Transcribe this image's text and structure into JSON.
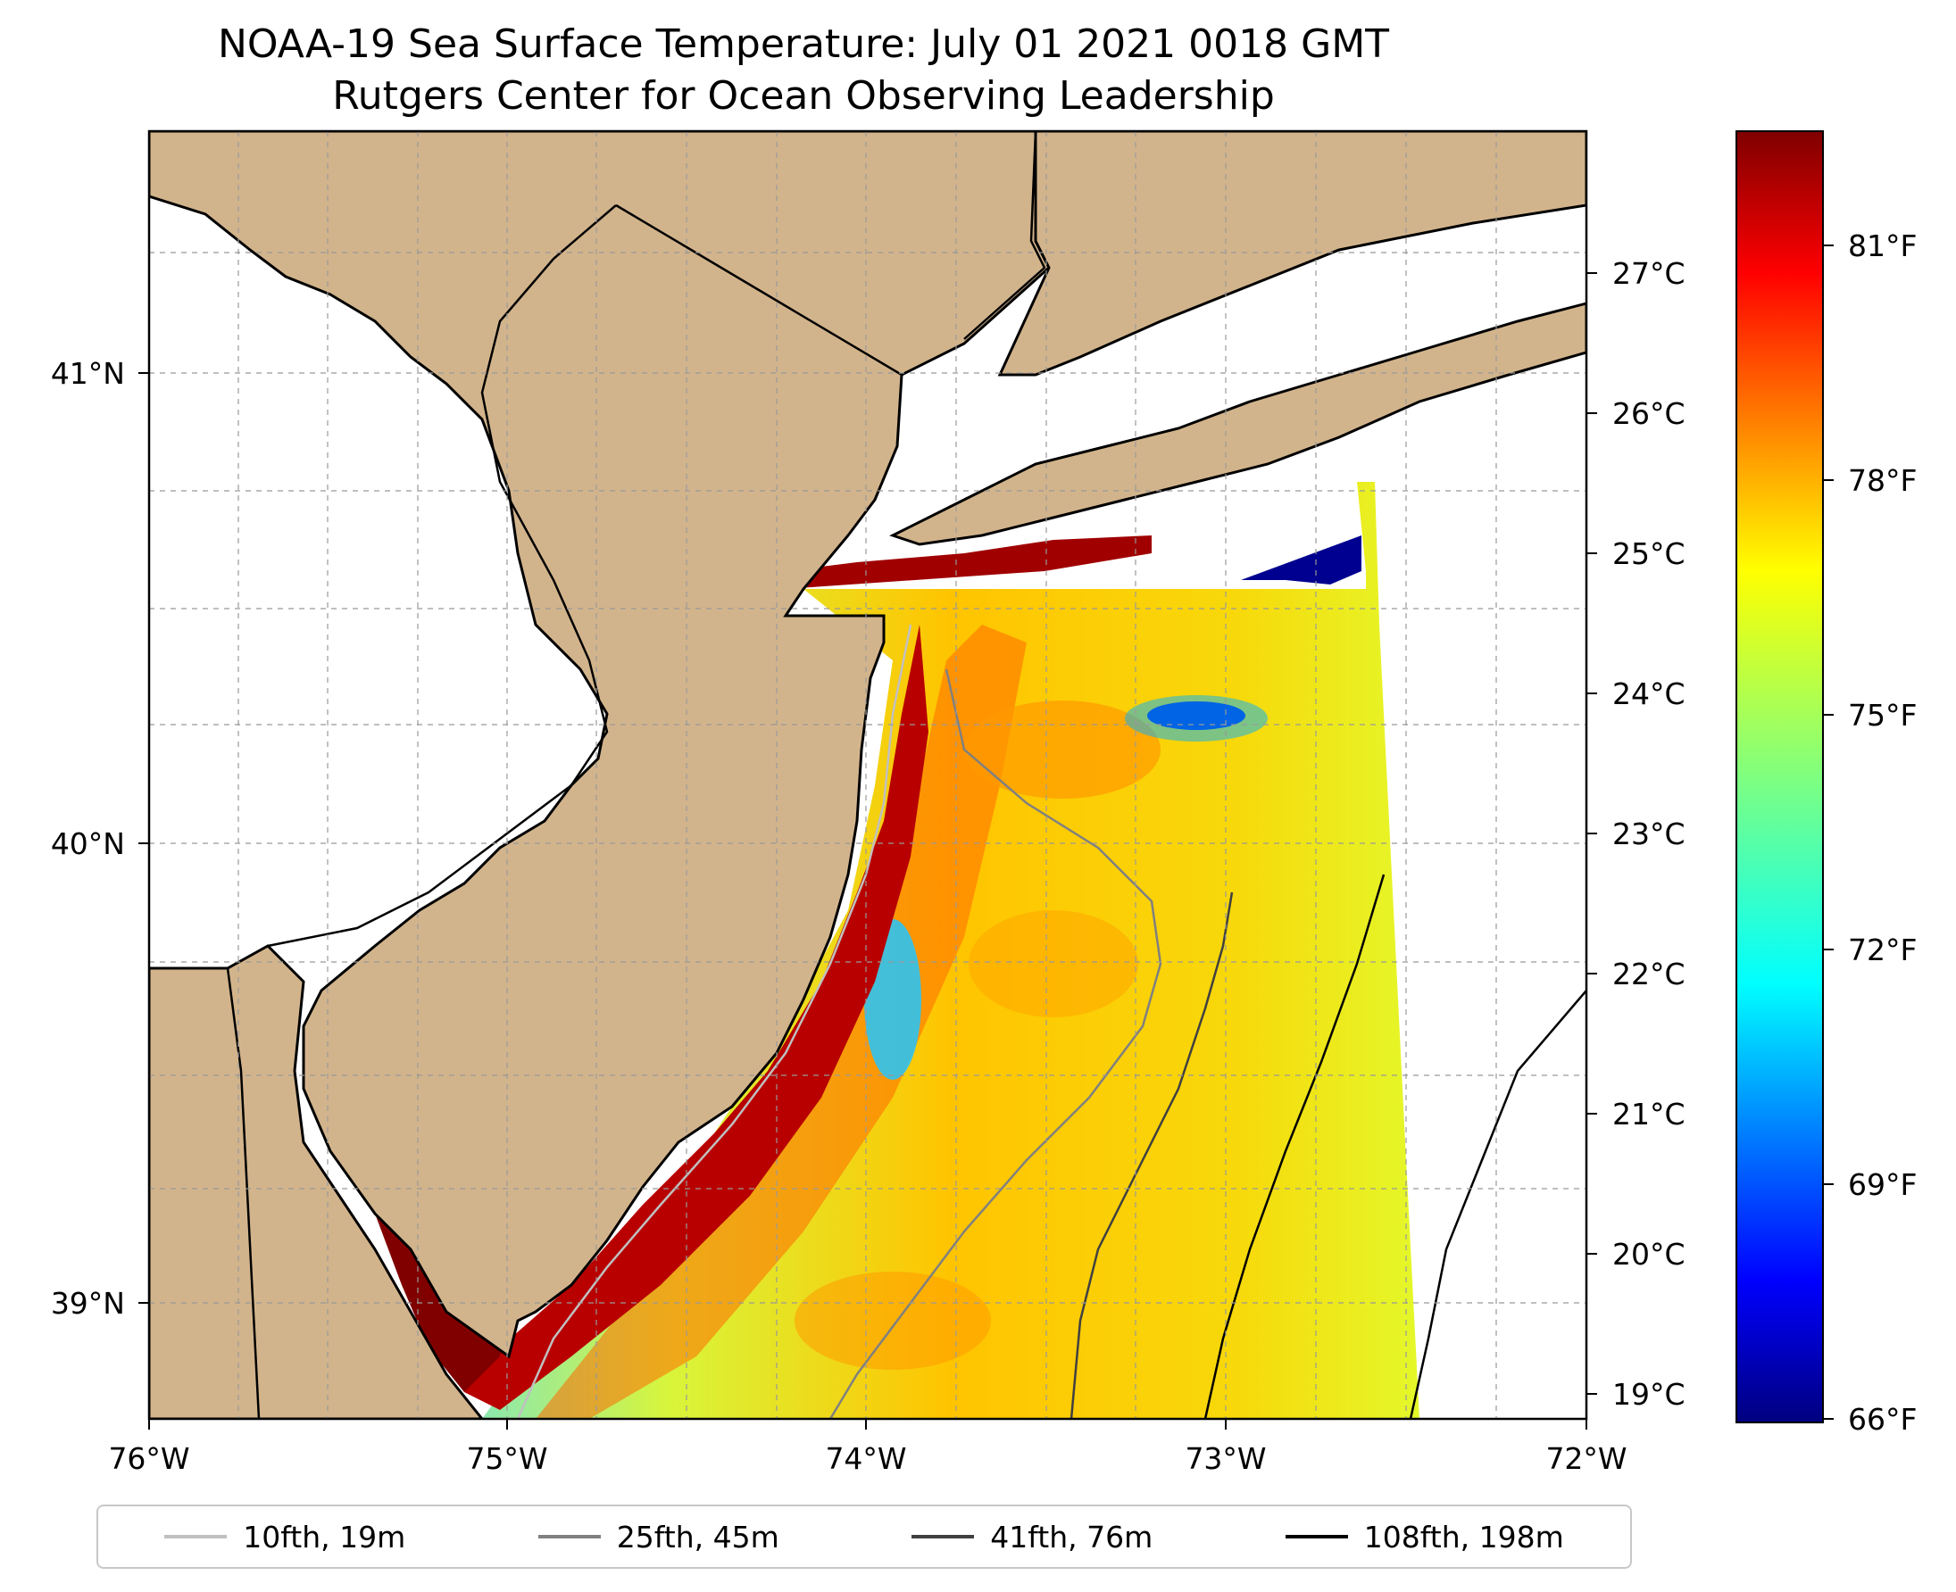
{
  "title": {
    "line1": "NOAA-19 Sea Surface Temperature: July 01 2021 0018 GMT",
    "line2": "Rutgers Center for Ocean Observing Leadership"
  },
  "map": {
    "x_ticks": [
      "76°W",
      "75°W",
      "74°W",
      "73°W",
      "72°W"
    ],
    "y_ticks": [
      "41°N",
      "40°N",
      "39°N"
    ],
    "land_color": "#d2b48c",
    "gridlines": true
  },
  "colorbar": {
    "colormap": "jet",
    "celsius_ticks": [
      "27°C",
      "26°C",
      "25°C",
      "24°C",
      "23°C",
      "22°C",
      "21°C",
      "20°C",
      "19°C"
    ],
    "fahrenheit_ticks": [
      "81°F",
      "78°F",
      "75°F",
      "72°F",
      "69°F",
      "66°F"
    ]
  },
  "legend": [
    {
      "label": "10fth, 19m",
      "color": "#c0c0c0"
    },
    {
      "label": "25fth, 45m",
      "color": "#808080"
    },
    {
      "label": "41fth, 76m",
      "color": "#404040"
    },
    {
      "label": "108fth, 198m",
      "color": "#000000"
    }
  ]
}
